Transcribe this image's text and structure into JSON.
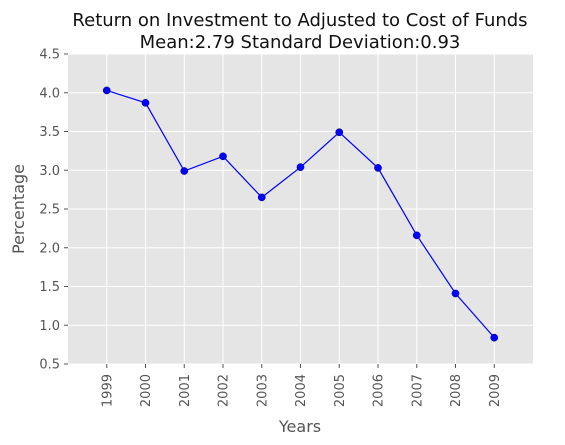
{
  "chart_data": {
    "type": "line",
    "title": "Return on Investment to Adjusted to Cost of Funds",
    "subtitle": "Mean:2.79 Standard Deviation:0.93",
    "xlabel": "Years",
    "ylabel": "Percentage",
    "categories": [
      "1999",
      "2000",
      "2001",
      "2002",
      "2003",
      "2004",
      "2005",
      "2006",
      "2007",
      "2008",
      "2009"
    ],
    "values": [
      4.03,
      3.87,
      2.99,
      3.18,
      2.65,
      3.04,
      3.49,
      3.03,
      2.16,
      1.41,
      0.84
    ],
    "ylim": [
      0.5,
      4.5
    ],
    "yticks": [
      "0.5",
      "1.0",
      "1.5",
      "2.0",
      "2.5",
      "3.0",
      "3.5",
      "4.0",
      "4.5"
    ],
    "grid": true,
    "legend": false,
    "colors": {
      "line": "#0000ff",
      "plot_background": "#e5e5e5",
      "grid": "#ffffff"
    }
  }
}
